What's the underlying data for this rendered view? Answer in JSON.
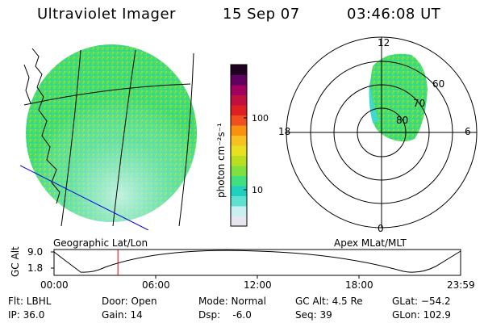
{
  "header": {
    "instrument": "Ultraviolet Imager",
    "date": "15 Sep 07",
    "time": "03:46:08 UT"
  },
  "panels": {
    "left_label": "Geographic Lat/Lon",
    "right_label": "Apex  MLat/MLT"
  },
  "colorbar": {
    "unit": "photon cm⁻²s⁻¹",
    "tick_100": "100",
    "tick_10": "10",
    "colors": [
      "#e6e6f0",
      "#c8f0f0",
      "#60e0d0",
      "#20d0c0",
      "#40e080",
      "#80e040",
      "#b8e020",
      "#e8e020",
      "#f8c020",
      "#f89010",
      "#f05020",
      "#e02020",
      "#c01040",
      "#a00060",
      "#600060",
      "#200020"
    ]
  },
  "polar": {
    "mlt_12": "12",
    "mlt_18": "18",
    "mlt_6": "6",
    "mlt_0": "0",
    "lat_60": "60",
    "lat_70": "70",
    "lat_80": "80"
  },
  "altitude_plot": {
    "axis_label": "GC Alt",
    "y_top": "9.0",
    "y_bottom": "1.8",
    "t0": "00:00",
    "t1": "06:00",
    "t2": "12:00",
    "t3": "18:00",
    "t4": "23:59",
    "marker_hours": 3.77
  },
  "status": {
    "flt": "Flt: LBHL",
    "ip": "IP: 36.0",
    "door": "Door: Open",
    "gain": "Gain: 14",
    "mode": "Mode: Normal",
    "dsp": "Dsp:    -6.0",
    "gc_alt": "GC Alt: 4.5 Re",
    "seq": "Seq: 39",
    "glat": "GLat: −54.2",
    "glon": "GLon: 102.9"
  }
}
